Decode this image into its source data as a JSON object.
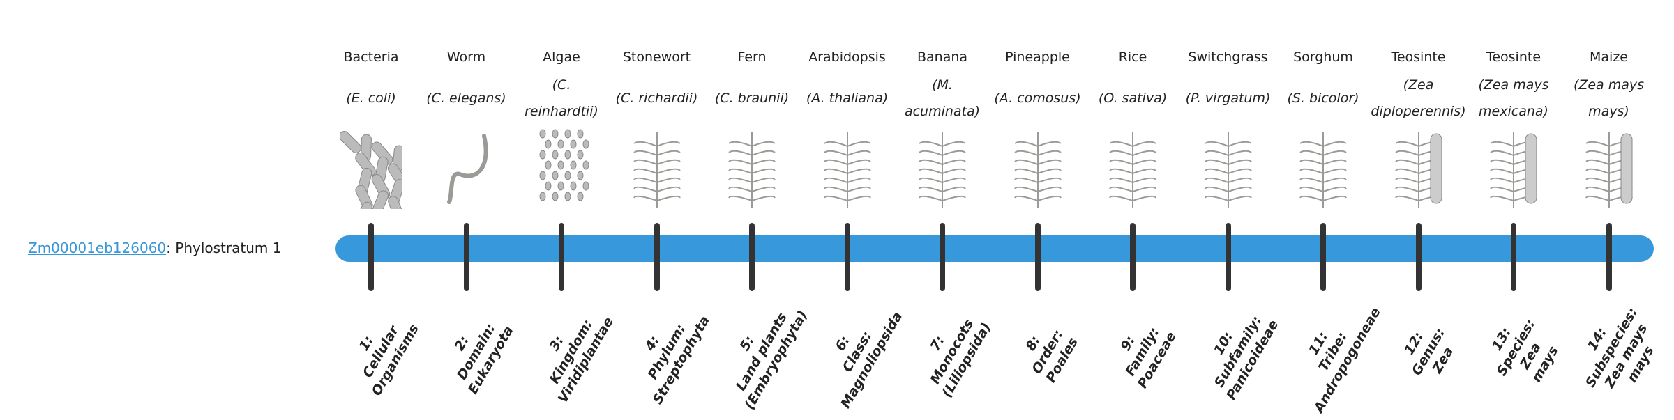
{
  "gene": {
    "id": "Zm00001eb126060",
    "suffix": ": Phylostratum 1"
  },
  "colors": {
    "bar": "#3798db",
    "tick": "#333333",
    "link": "#3a97d8"
  },
  "strata": [
    {
      "name": "Bacteria",
      "sci": "(E. coli)",
      "icon": "bacteria-icon",
      "label": "1:\nCellular\nOrganisms"
    },
    {
      "name": "Worm",
      "sci": "(C. elegans)",
      "icon": "worm-icon",
      "label": "2:\nDomain:\nEukaryota"
    },
    {
      "name": "Algae",
      "sci": "(C. reinhardtii)",
      "icon": "algae-icon",
      "label": "3:\nKingdom:\nViridiplantae"
    },
    {
      "name": "Stonewort",
      "sci": "(C. richardii)",
      "icon": "stonewort-icon",
      "label": "4:\nPhylum:\nStreptophyta"
    },
    {
      "name": "Fern",
      "sci": "(C. braunii)",
      "icon": "fern-icon",
      "label": "5:\nLand plants\n(Embryophyta)"
    },
    {
      "name": "Arabidopsis",
      "sci": "(A. thaliana)",
      "icon": "arabidopsis-icon",
      "label": "6:\nClass:\nMagnoliopsida"
    },
    {
      "name": "Banana",
      "sci": "(M. acuminata)",
      "icon": "banana-icon",
      "label": "7:\nMonocots\n(Liliopsida)"
    },
    {
      "name": "Pineapple",
      "sci": "(A. comosus)",
      "icon": "pineapple-icon",
      "label": "8:\nOrder:\nPoales"
    },
    {
      "name": "Rice",
      "sci": "(O. sativa)",
      "icon": "rice-icon",
      "label": "9:\nFamily:\nPoaceae"
    },
    {
      "name": "Switchgrass",
      "sci": "(P. virgatum)",
      "icon": "switchgrass-icon",
      "label": "10:\nSubfamily:\nPanicoideae"
    },
    {
      "name": "Sorghum",
      "sci": "(S. bicolor)",
      "icon": "sorghum-icon",
      "label": "11:\nTribe:\nAndropogoneae"
    },
    {
      "name": "Teosinte",
      "sci": "(Zea diploperennis)",
      "icon": "teosinte-icon",
      "label": "12:\nGenus:\nZea"
    },
    {
      "name": "Teosinte",
      "sci": "(Zea mays mexicana)",
      "icon": "teosinte-icon",
      "label": "13:\nSpecies:\nZea\nmays"
    },
    {
      "name": "Maize",
      "sci": "(Zea mays mays)",
      "icon": "maize-icon",
      "label": "14:\nSubspecies:\nZea mays\nmays"
    }
  ]
}
